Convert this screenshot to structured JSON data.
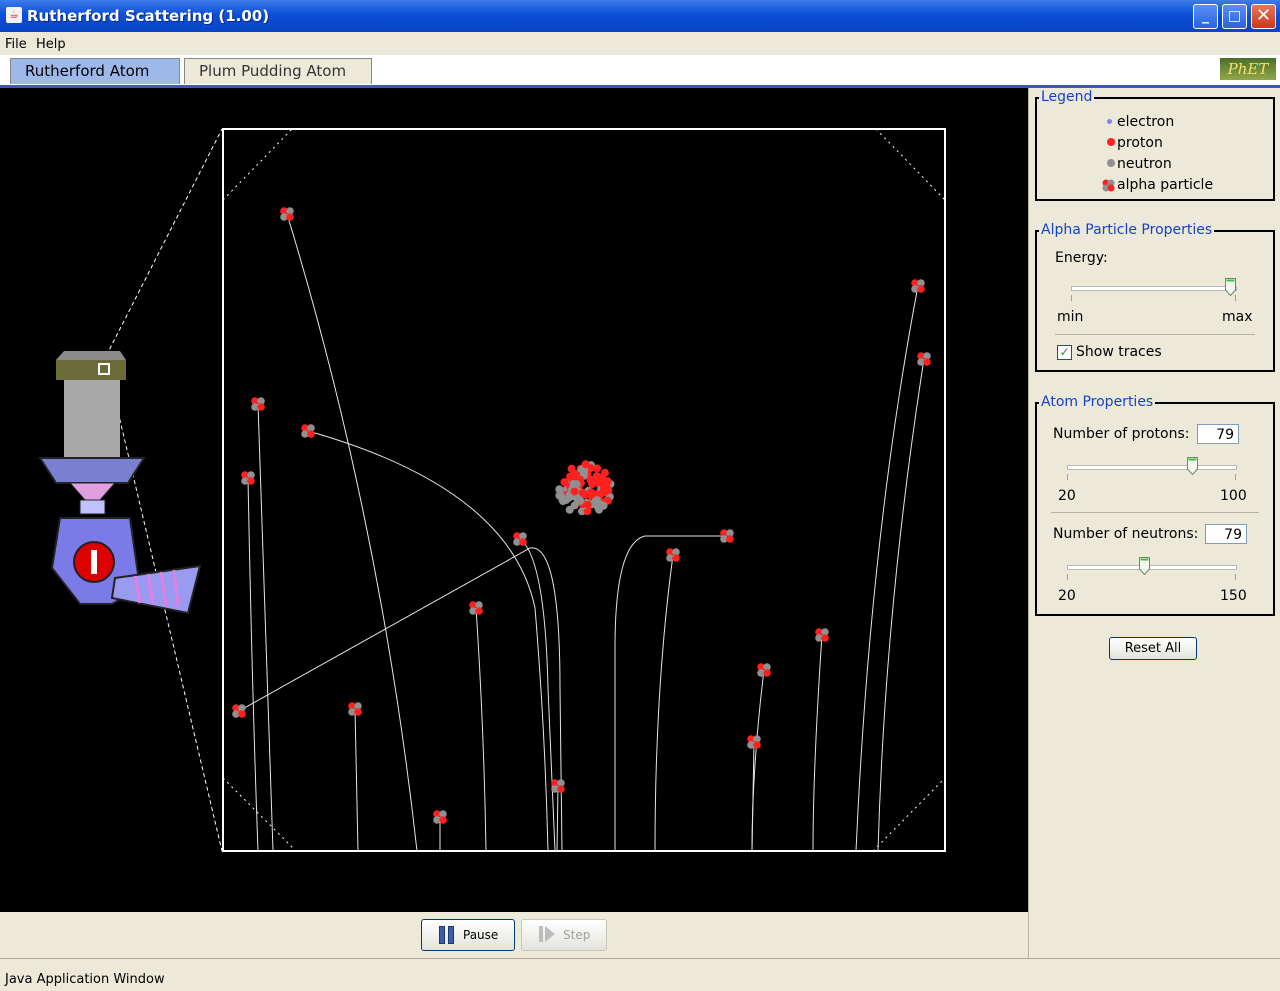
{
  "window": {
    "title": "Rutherford Scattering (1.00)",
    "minimize": "_",
    "maximize": "□",
    "close": "✕"
  },
  "menu": {
    "file": "File",
    "help": "Help"
  },
  "tabs": [
    {
      "label": "Rutherford Atom"
    },
    {
      "label": "Plum Pudding Atom"
    }
  ],
  "logo": {
    "text": "PhET"
  },
  "legend": {
    "title": "Legend",
    "items": [
      {
        "label": "electron",
        "color": "#8080ff"
      },
      {
        "label": "proton",
        "color": "#ff2020"
      },
      {
        "label": "neutron",
        "color": "#909090"
      },
      {
        "label": "alpha particle",
        "color": "#cc2020"
      }
    ]
  },
  "alpha": {
    "title": "Alpha Particle Properties",
    "energy_label": "Energy:",
    "min_label": "min",
    "max_label": "max",
    "energy_level": 0.97,
    "show_traces_label": "Show traces",
    "show_traces_checked": true
  },
  "atom": {
    "title": "Atom Properties",
    "protons_label": "Number of protons:",
    "protons_value": "79",
    "protons_min": "20",
    "protons_max": "100",
    "neutrons_label": "Number of neutrons:",
    "neutrons_value": "79",
    "neutrons_min": "20",
    "neutrons_max": "150"
  },
  "reset_label": "Reset All",
  "controls": {
    "pause_label": "Pause",
    "step_label": "Step"
  },
  "status": {
    "text": "Java Application Window"
  },
  "colors": {
    "accent": "#1642c4",
    "titlebar": "#0a4fd8",
    "canvas": "#000000",
    "proton": "#ff2020",
    "neutron": "#909090"
  }
}
